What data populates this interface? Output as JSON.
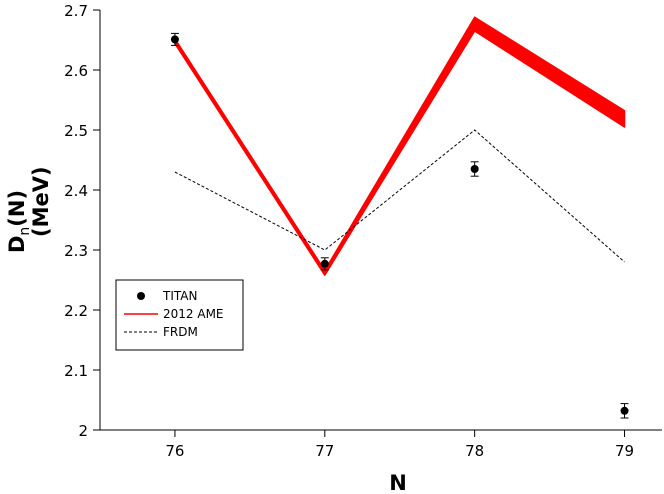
{
  "chart_data": {
    "type": "line",
    "x": [
      76,
      77,
      78,
      79
    ],
    "xlabel": "N",
    "ylabel_main": "D",
    "ylabel_sub": "n",
    "ylabel_tail": "(N)",
    "ylabel_unit": "(MeV)",
    "xlim": [
      75.5,
      79.25
    ],
    "ylim": [
      2.0,
      2.7
    ],
    "x_ticks": [
      76,
      77,
      78,
      79
    ],
    "x_tick_labels": [
      "76",
      "77",
      "78",
      "79"
    ],
    "y_ticks": [
      2.0,
      2.1,
      2.2,
      2.3,
      2.4,
      2.5,
      2.6,
      2.7
    ],
    "y_tick_labels": [
      "2",
      "2.1",
      "2.2",
      "2.3",
      "2.4",
      "2.5",
      "2.6",
      "2.7"
    ],
    "grid": false,
    "legend_position": "lower-left",
    "series": [
      {
        "name": "TITAN",
        "kind": "points-with-errorbars",
        "color": "#000000",
        "values": [
          2.651,
          2.277,
          2.435,
          2.032
        ],
        "errors": [
          0.01,
          0.01,
          0.012,
          0.012
        ]
      },
      {
        "name": "2012 AME",
        "kind": "band",
        "color": "#ff0000",
        "lower": [
          2.644,
          2.258,
          2.665,
          2.505
        ],
        "upper": [
          2.652,
          2.266,
          2.688,
          2.532
        ]
      },
      {
        "name": "FRDM",
        "kind": "dashed-line",
        "color": "#000000",
        "values": [
          2.43,
          2.3,
          2.5,
          2.28
        ]
      }
    ]
  }
}
